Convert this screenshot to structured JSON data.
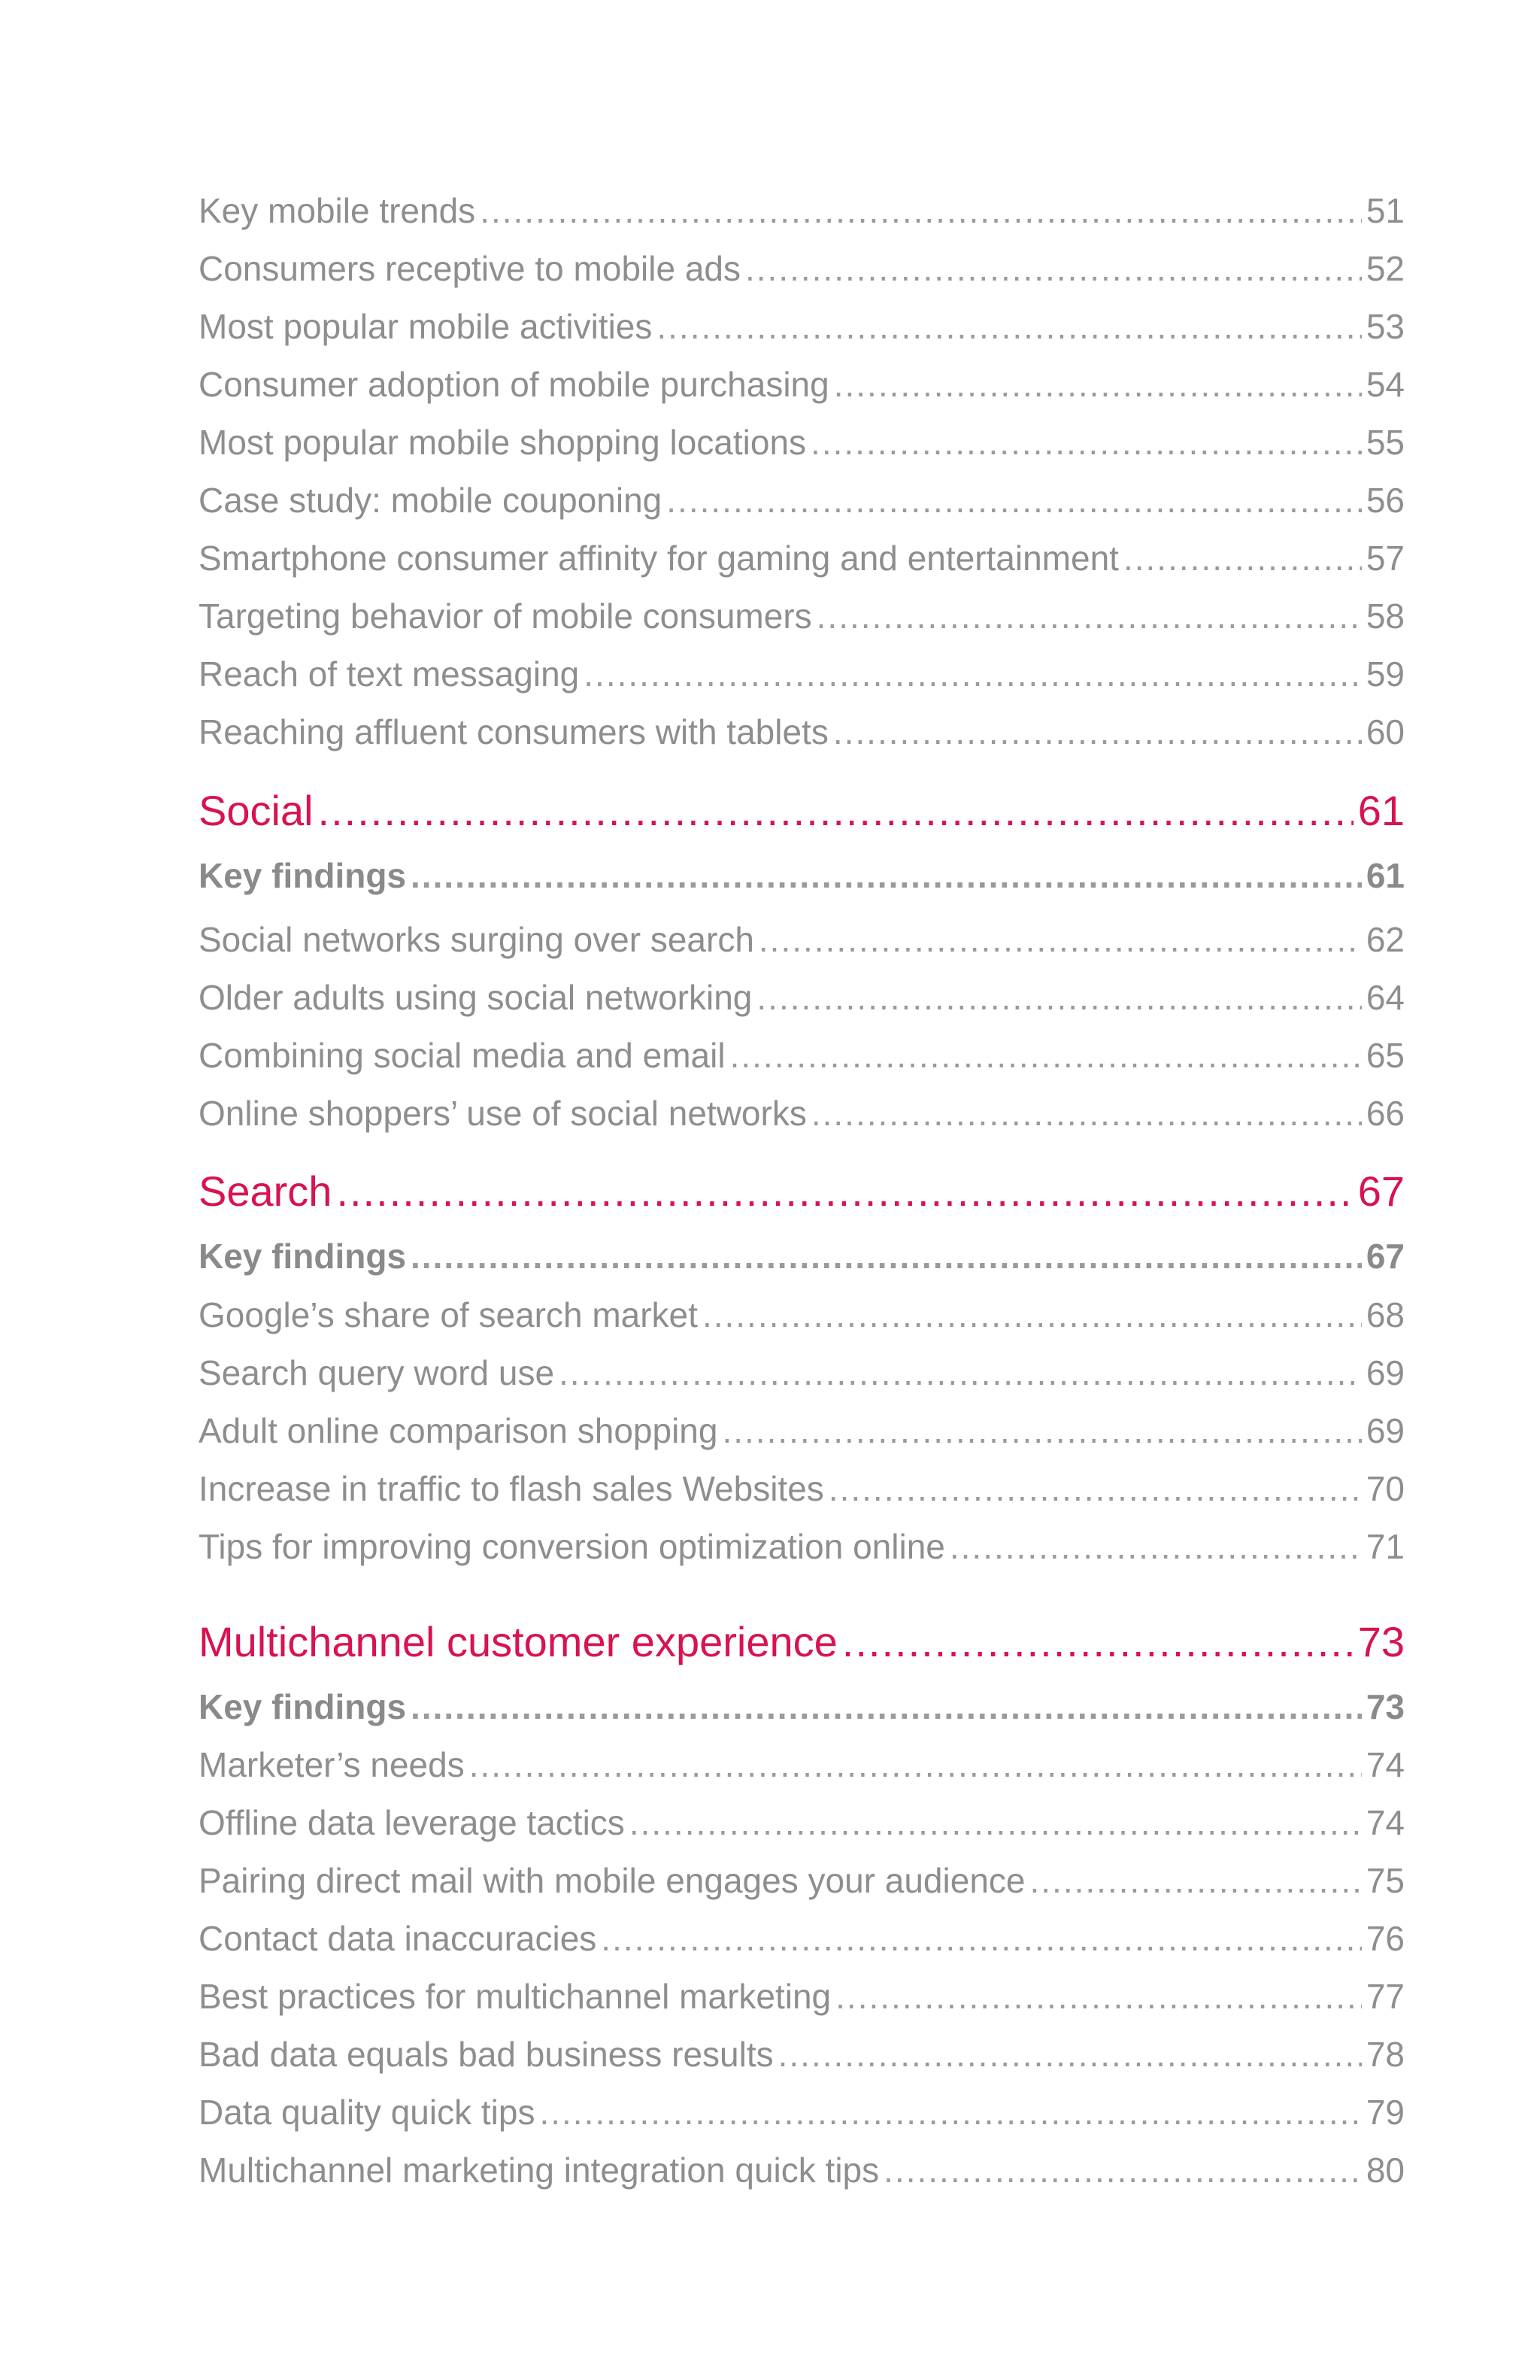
{
  "mobile_items": [
    {
      "title": "Key mobile trends",
      "page": "51"
    },
    {
      "title": "Consumers receptive to mobile ads",
      "page": "52"
    },
    {
      "title": "Most popular mobile activities",
      "page": "53"
    },
    {
      "title": "Consumer adoption of mobile purchasing",
      "page": "54"
    },
    {
      "title": "Most popular mobile shopping locations",
      "page": "55"
    },
    {
      "title": "Case study: mobile couponing",
      "page": "56"
    },
    {
      "title": "Smartphone consumer affinity for gaming and entertainment",
      "page": "57"
    },
    {
      "title": "Targeting behavior of mobile consumers",
      "page": "58"
    },
    {
      "title": "Reach of text messaging",
      "page": "59"
    },
    {
      "title": "Reaching affluent consumers with tablets",
      "page": "60"
    }
  ],
  "social": {
    "heading": "Social",
    "page": "61",
    "items": [
      {
        "title": "Key findings",
        "page": "61"
      },
      {
        "title": "Social networks surging over search",
        "page": "62"
      },
      {
        "title": "Older adults using social networking",
        "page": "64"
      },
      {
        "title": "Combining social media and email",
        "page": "65"
      },
      {
        "title": "Online shoppers’ use of social networks",
        "page": "66"
      }
    ]
  },
  "search": {
    "heading": "Search",
    "page": "67",
    "items": [
      {
        "title": "Key findings",
        "page": "67"
      },
      {
        "title": "Google’s share of search market",
        "page": "68"
      },
      {
        "title": "Search query word use",
        "page": "69"
      },
      {
        "title": "Adult online comparison shopping",
        "page": "69"
      },
      {
        "title": "Increase in traffic to flash sales Websites",
        "page": "70"
      },
      {
        "title": "Tips for improving conversion optimization online",
        "page": "71"
      }
    ]
  },
  "multichannel": {
    "heading": "Multichannel customer experience",
    "page": "73",
    "items": [
      {
        "title": "Key findings",
        "page": "73"
      },
      {
        "title": "Marketer’s needs",
        "page": "74"
      },
      {
        "title": "Offline data leverage tactics",
        "page": "74"
      },
      {
        "title": "Pairing direct mail with mobile engages your audience",
        "page": "75"
      },
      {
        "title": "Contact data inaccuracies",
        "page": "76"
      },
      {
        "title": "Best practices for multichannel marketing",
        "page": "77"
      },
      {
        "title": "Bad data equals bad business results",
        "page": "78"
      },
      {
        "title": "Data quality quick tips",
        "page": "79"
      },
      {
        "title": "Multichannel marketing integration quick tips",
        "page": "80"
      }
    ]
  }
}
